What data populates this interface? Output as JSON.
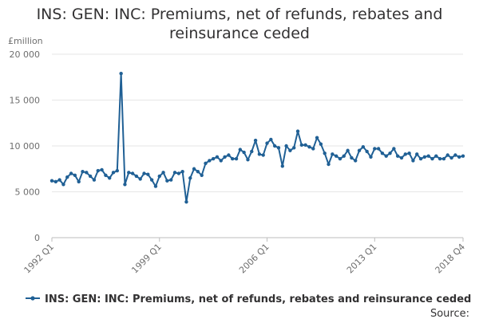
{
  "chart_data": {
    "type": "line",
    "title_line1": "INS: GEN: INC: Premiums, net of refunds, rebates and",
    "title_line2": "reinsurance ceded",
    "ylabel": "£million",
    "ylim": [
      0,
      20000
    ],
    "y_ticks": [
      {
        "value": 0,
        "label": "0"
      },
      {
        "value": 5000,
        "label": "5 000"
      },
      {
        "value": 10000,
        "label": "10 000"
      },
      {
        "value": 15000,
        "label": "15 000"
      },
      {
        "value": 20000,
        "label": "20 000"
      }
    ],
    "x_start": "1992 Q1",
    "x_ticks": [
      {
        "index": 0,
        "label": "1992 Q1"
      },
      {
        "index": 28,
        "label": "1999 Q1"
      },
      {
        "index": 56,
        "label": "2006 Q1"
      },
      {
        "index": 84,
        "label": "2013 Q1"
      },
      {
        "index": 107,
        "label": "2018 Q4"
      }
    ],
    "grid": true,
    "legend_position": "bottom",
    "color": "#206095",
    "series": [
      {
        "name": "INS: GEN: INC: Premiums, net of refunds, rebates and reinsurance ceded",
        "values": [
          6200,
          6100,
          6300,
          5800,
          6600,
          7000,
          6800,
          6100,
          7200,
          7100,
          6700,
          6300,
          7300,
          7400,
          6800,
          6500,
          7100,
          7300,
          17900,
          5800,
          7100,
          7000,
          6700,
          6400,
          7000,
          6900,
          6300,
          5600,
          6700,
          7100,
          6200,
          6300,
          7100,
          7000,
          7200,
          3900,
          6500,
          7500,
          7200,
          6800,
          8100,
          8400,
          8600,
          8800,
          8400,
          8800,
          9000,
          8600,
          8600,
          9600,
          9300,
          8500,
          9400,
          10600,
          9100,
          9000,
          10300,
          10700,
          10000,
          9800,
          7800,
          10000,
          9500,
          9800,
          11600,
          10100,
          10100,
          9900,
          9700,
          10900,
          10200,
          9200,
          8000,
          9100,
          8900,
          8600,
          8900,
          9500,
          8700,
          8400,
          9500,
          9900,
          9400,
          8800,
          9700,
          9700,
          9200,
          8900,
          9200,
          9700,
          8900,
          8700,
          9100,
          9200,
          8400,
          9100,
          8600,
          8800,
          8900,
          8600,
          8900,
          8600,
          8600,
          9000,
          8700,
          9000,
          8800,
          8900
        ]
      }
    ]
  },
  "source_label": "Source:"
}
